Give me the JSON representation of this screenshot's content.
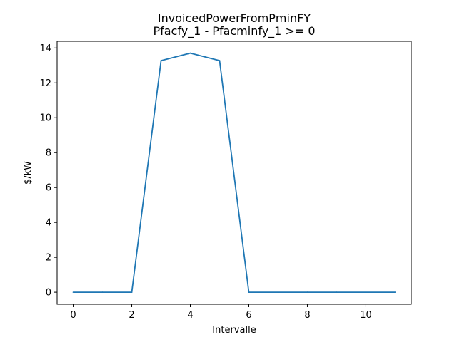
{
  "chart_data": {
    "type": "line",
    "title": "InvoicedPowerFromPminFY",
    "subtitle": "Pfacfy_1 - Pfacminfy_1 >= 0",
    "xlabel": "Intervalle",
    "ylabel": "$/kW",
    "xlim": [
      -0.55,
      11.55
    ],
    "ylim": [
      -0.69,
      14.38
    ],
    "x_ticks": [
      0,
      2,
      4,
      6,
      8,
      10
    ],
    "y_ticks": [
      0,
      2,
      4,
      6,
      8,
      10,
      12,
      14
    ],
    "grid": false,
    "series": [
      {
        "color": "#1f77b4",
        "x": [
          0,
          1,
          2,
          3,
          4,
          5,
          6,
          7,
          8,
          9,
          10,
          11
        ],
        "y": [
          0,
          0,
          0,
          13.27,
          13.7,
          13.27,
          0,
          0,
          0,
          0,
          0,
          0
        ]
      }
    ]
  }
}
